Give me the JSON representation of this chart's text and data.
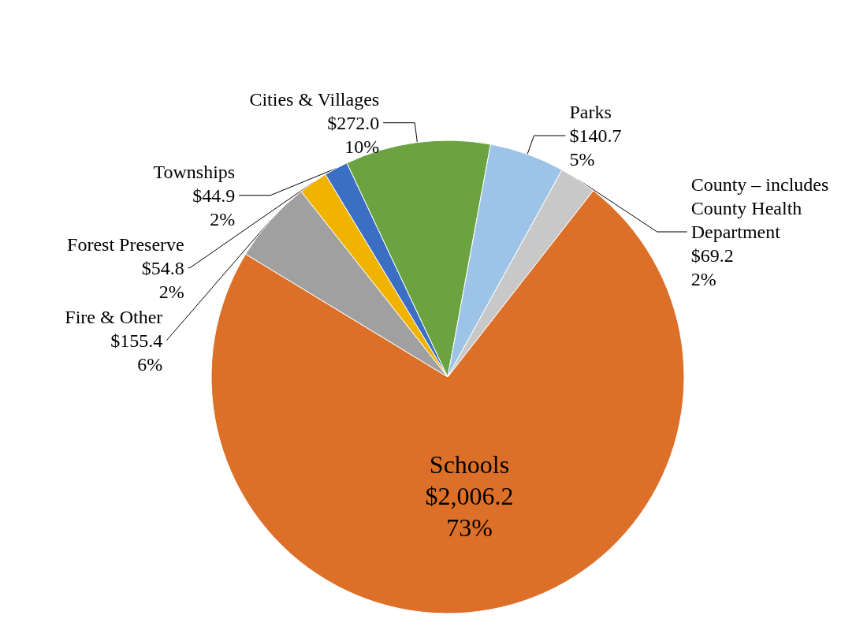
{
  "chart_data": {
    "type": "pie",
    "categories": [
      "Schools",
      "Fire & Other",
      "Forest Preserve",
      "Townships",
      "Cities & Villages",
      "Parks",
      "County – includes County Health Department"
    ],
    "values": [
      2006.2,
      155.4,
      54.8,
      44.9,
      272.0,
      140.7,
      69.2
    ],
    "value_labels": [
      "$2,006.2\n73%",
      "$155.4\n6%",
      "$54.8\n2%",
      "$44.9\n2%",
      "$272.0\n10%",
      "$140.7\n5%",
      "$69.2\n2%"
    ],
    "colors": [
      "#dd7029",
      "#a0a0a0",
      "#f0b400",
      "#3a6fc4",
      "#6aa33f",
      "#9dc3e6",
      "#c8c8c8"
    ],
    "legend": false
  }
}
